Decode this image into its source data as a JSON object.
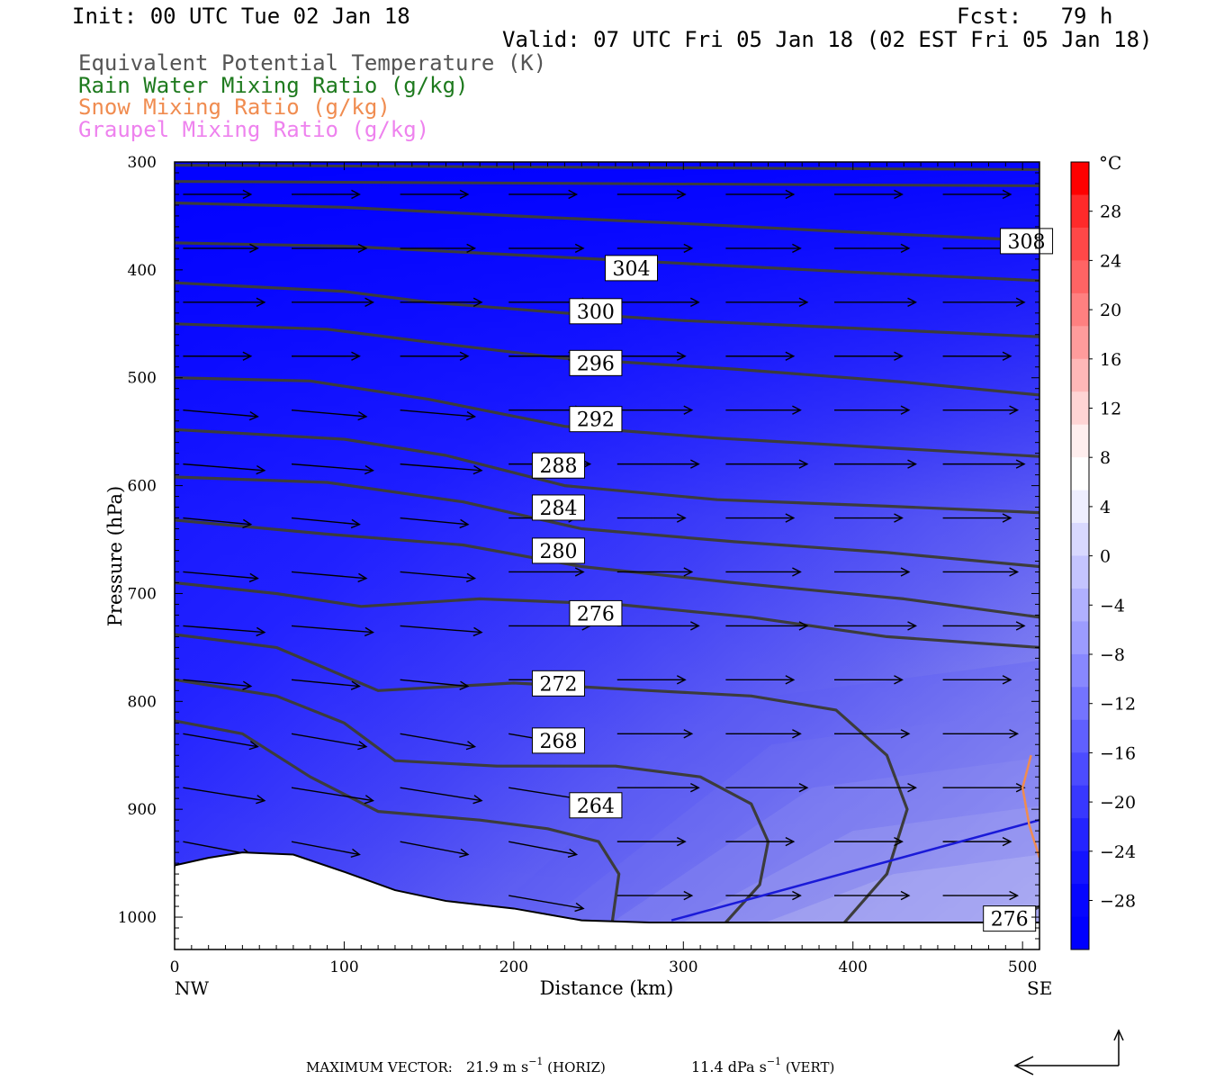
{
  "header": {
    "init": "Init: 00 UTC Tue 02 Jan 18",
    "fcst": "Fcst:   79 h",
    "valid": "Valid: 07 UTC Fri 05 Jan 18 (02 EST Fri 05 Jan 18)",
    "fields": [
      {
        "label": "Equivalent Potential Temperature (K)",
        "color": "#555555"
      },
      {
        "label": "Rain Water Mixing Ratio (g/kg)",
        "color": "#1e7a1e"
      },
      {
        "label": "Snow Mixing Ratio (g/kg)",
        "color": "#f08c50"
      },
      {
        "label": "Graupel Mixing Ratio (g/kg)",
        "color": "#ee82ee"
      }
    ]
  },
  "chart_data": {
    "type": "cross-section",
    "xlabel": "Distance (km)",
    "ylabel": "Pressure (hPa)",
    "xlim": [
      0,
      510
    ],
    "ylim": [
      1030,
      300
    ],
    "x_ticks": [
      0,
      100,
      200,
      300,
      400,
      500
    ],
    "y_ticks": [
      300,
      400,
      500,
      600,
      700,
      800,
      900,
      1000
    ],
    "x_end_labels": {
      "left": "NW",
      "right": "SE"
    },
    "theta_e_contours_K": [
      {
        "value": 308,
        "points": [
          [
            0,
            338
          ],
          [
            100,
            342
          ],
          [
            200,
            350
          ],
          [
            300,
            357
          ],
          [
            400,
            365
          ],
          [
            510,
            373
          ]
        ]
      },
      {
        "value": 304,
        "points": [
          [
            0,
            375
          ],
          [
            100,
            378
          ],
          [
            200,
            386
          ],
          [
            300,
            394
          ],
          [
            400,
            402
          ],
          [
            510,
            410
          ]
        ]
      },
      {
        "value": 300,
        "points": [
          [
            0,
            412
          ],
          [
            100,
            420
          ],
          [
            150,
            430
          ],
          [
            230,
            440
          ],
          [
            300,
            447
          ],
          [
            400,
            454
          ],
          [
            510,
            462
          ]
        ]
      },
      {
        "value": 296,
        "points": [
          [
            0,
            450
          ],
          [
            90,
            455
          ],
          [
            150,
            467
          ],
          [
            230,
            482
          ],
          [
            330,
            492
          ],
          [
            430,
            504
          ],
          [
            510,
            516
          ]
        ]
      },
      {
        "value": 292,
        "points": [
          [
            0,
            500
          ],
          [
            80,
            503
          ],
          [
            150,
            520
          ],
          [
            230,
            545
          ],
          [
            320,
            556
          ],
          [
            420,
            565
          ],
          [
            510,
            573
          ]
        ]
      },
      {
        "value": 288,
        "points": [
          [
            0,
            548
          ],
          [
            100,
            557
          ],
          [
            160,
            572
          ],
          [
            230,
            600
          ],
          [
            320,
            613
          ],
          [
            420,
            619
          ],
          [
            510,
            625
          ]
        ]
      },
      {
        "value": 284,
        "points": [
          [
            0,
            592
          ],
          [
            90,
            597
          ],
          [
            170,
            615
          ],
          [
            240,
            640
          ],
          [
            330,
            652
          ],
          [
            420,
            662
          ],
          [
            510,
            675
          ]
        ]
      },
      {
        "value": 280,
        "points": [
          [
            0,
            632
          ],
          [
            90,
            645
          ],
          [
            170,
            655
          ],
          [
            240,
            675
          ],
          [
            330,
            690
          ],
          [
            430,
            705
          ],
          [
            510,
            722
          ]
        ]
      },
      {
        "value": 276,
        "points": [
          [
            0,
            690
          ],
          [
            60,
            700
          ],
          [
            110,
            712
          ],
          [
            180,
            705
          ],
          [
            260,
            710
          ],
          [
            340,
            722
          ],
          [
            420,
            740
          ],
          [
            510,
            750
          ]
        ]
      },
      {
        "value": 272,
        "points": [
          [
            0,
            738
          ],
          [
            60,
            750
          ],
          [
            120,
            790
          ],
          [
            200,
            783
          ],
          [
            280,
            790
          ],
          [
            340,
            795
          ],
          [
            390,
            808
          ],
          [
            420,
            850
          ],
          [
            432,
            900
          ],
          [
            420,
            960
          ],
          [
            395,
            1005
          ]
        ]
      },
      {
        "value": 268,
        "points": [
          [
            0,
            780
          ],
          [
            60,
            795
          ],
          [
            100,
            820
          ],
          [
            130,
            855
          ],
          [
            190,
            860
          ],
          [
            260,
            860
          ],
          [
            310,
            870
          ],
          [
            340,
            895
          ],
          [
            350,
            930
          ],
          [
            345,
            970
          ],
          [
            325,
            1005
          ]
        ]
      },
      {
        "value": 264,
        "points": [
          [
            0,
            818
          ],
          [
            40,
            830
          ],
          [
            80,
            870
          ],
          [
            120,
            902
          ],
          [
            180,
            910
          ],
          [
            220,
            918
          ],
          [
            250,
            930
          ],
          [
            262,
            960
          ],
          [
            258,
            1005
          ]
        ]
      },
      {
        "value": 276,
        "points": [
          [
            488,
            1010
          ],
          [
            510,
            990
          ]
        ]
      }
    ],
    "contour_labels": [
      {
        "value": "308",
        "x": 488,
        "p": 375
      },
      {
        "value": "304",
        "x": 255,
        "p": 400
      },
      {
        "value": "300",
        "x": 234,
        "p": 440
      },
      {
        "value": "296",
        "x": 234,
        "p": 488
      },
      {
        "value": "292",
        "x": 234,
        "p": 540
      },
      {
        "value": "288",
        "x": 212,
        "p": 583
      },
      {
        "value": "284",
        "x": 212,
        "p": 622
      },
      {
        "value": "280",
        "x": 212,
        "p": 662
      },
      {
        "value": "276",
        "x": 234,
        "p": 720
      },
      {
        "value": "272",
        "x": 212,
        "p": 785
      },
      {
        "value": "268",
        "x": 212,
        "p": 838
      },
      {
        "value": "264",
        "x": 234,
        "p": 898
      },
      {
        "value": "276",
        "x": 478,
        "p": 1003
      }
    ],
    "terrain_hPa": [
      [
        0,
        952
      ],
      [
        20,
        945
      ],
      [
        40,
        940
      ],
      [
        70,
        942
      ],
      [
        100,
        958
      ],
      [
        130,
        975
      ],
      [
        160,
        985
      ],
      [
        200,
        992
      ],
      [
        240,
        1003
      ],
      [
        280,
        1005
      ],
      [
        400,
        1005
      ],
      [
        510,
        1005
      ]
    ],
    "freezing_line_0C": [
      [
        293,
        1003
      ],
      [
        510,
        910
      ]
    ],
    "snow_contour": [
      [
        505,
        850
      ],
      [
        500,
        880
      ],
      [
        504,
        915
      ],
      [
        510,
        945
      ]
    ],
    "colorbar": {
      "unit": "°C",
      "labels": [
        "28",
        "24",
        "20",
        "16",
        "12",
        "8",
        "4",
        "0",
        "−4",
        "−8",
        "−12",
        "−16",
        "−20",
        "−24",
        "−28"
      ],
      "colors": [
        "#fe0000",
        "#ff2a2a",
        "#ff4848",
        "#ff6464",
        "#ff8080",
        "#ff9c9c",
        "#ffb8b8",
        "#ffd4d4",
        "#ffeeee",
        "#ffffff",
        "#eeeeff",
        "#d8d8ff",
        "#c4c4ff",
        "#b0b0ff",
        "#9c9cff",
        "#8888ff",
        "#7474ff",
        "#6060ff",
        "#4c4cff",
        "#3838ff",
        "#2424ff",
        "#1414ff",
        "#0606ff",
        "#0000ff"
      ]
    }
  },
  "footer": {
    "max_label": "MAXIMUM VECTOR:",
    "horiz": "21.9 m s",
    "horiz_tail": " (HORIZ)",
    "vert": "11.4 dPa s",
    "vert_tail": " (VERT)",
    "sup": "−1"
  }
}
